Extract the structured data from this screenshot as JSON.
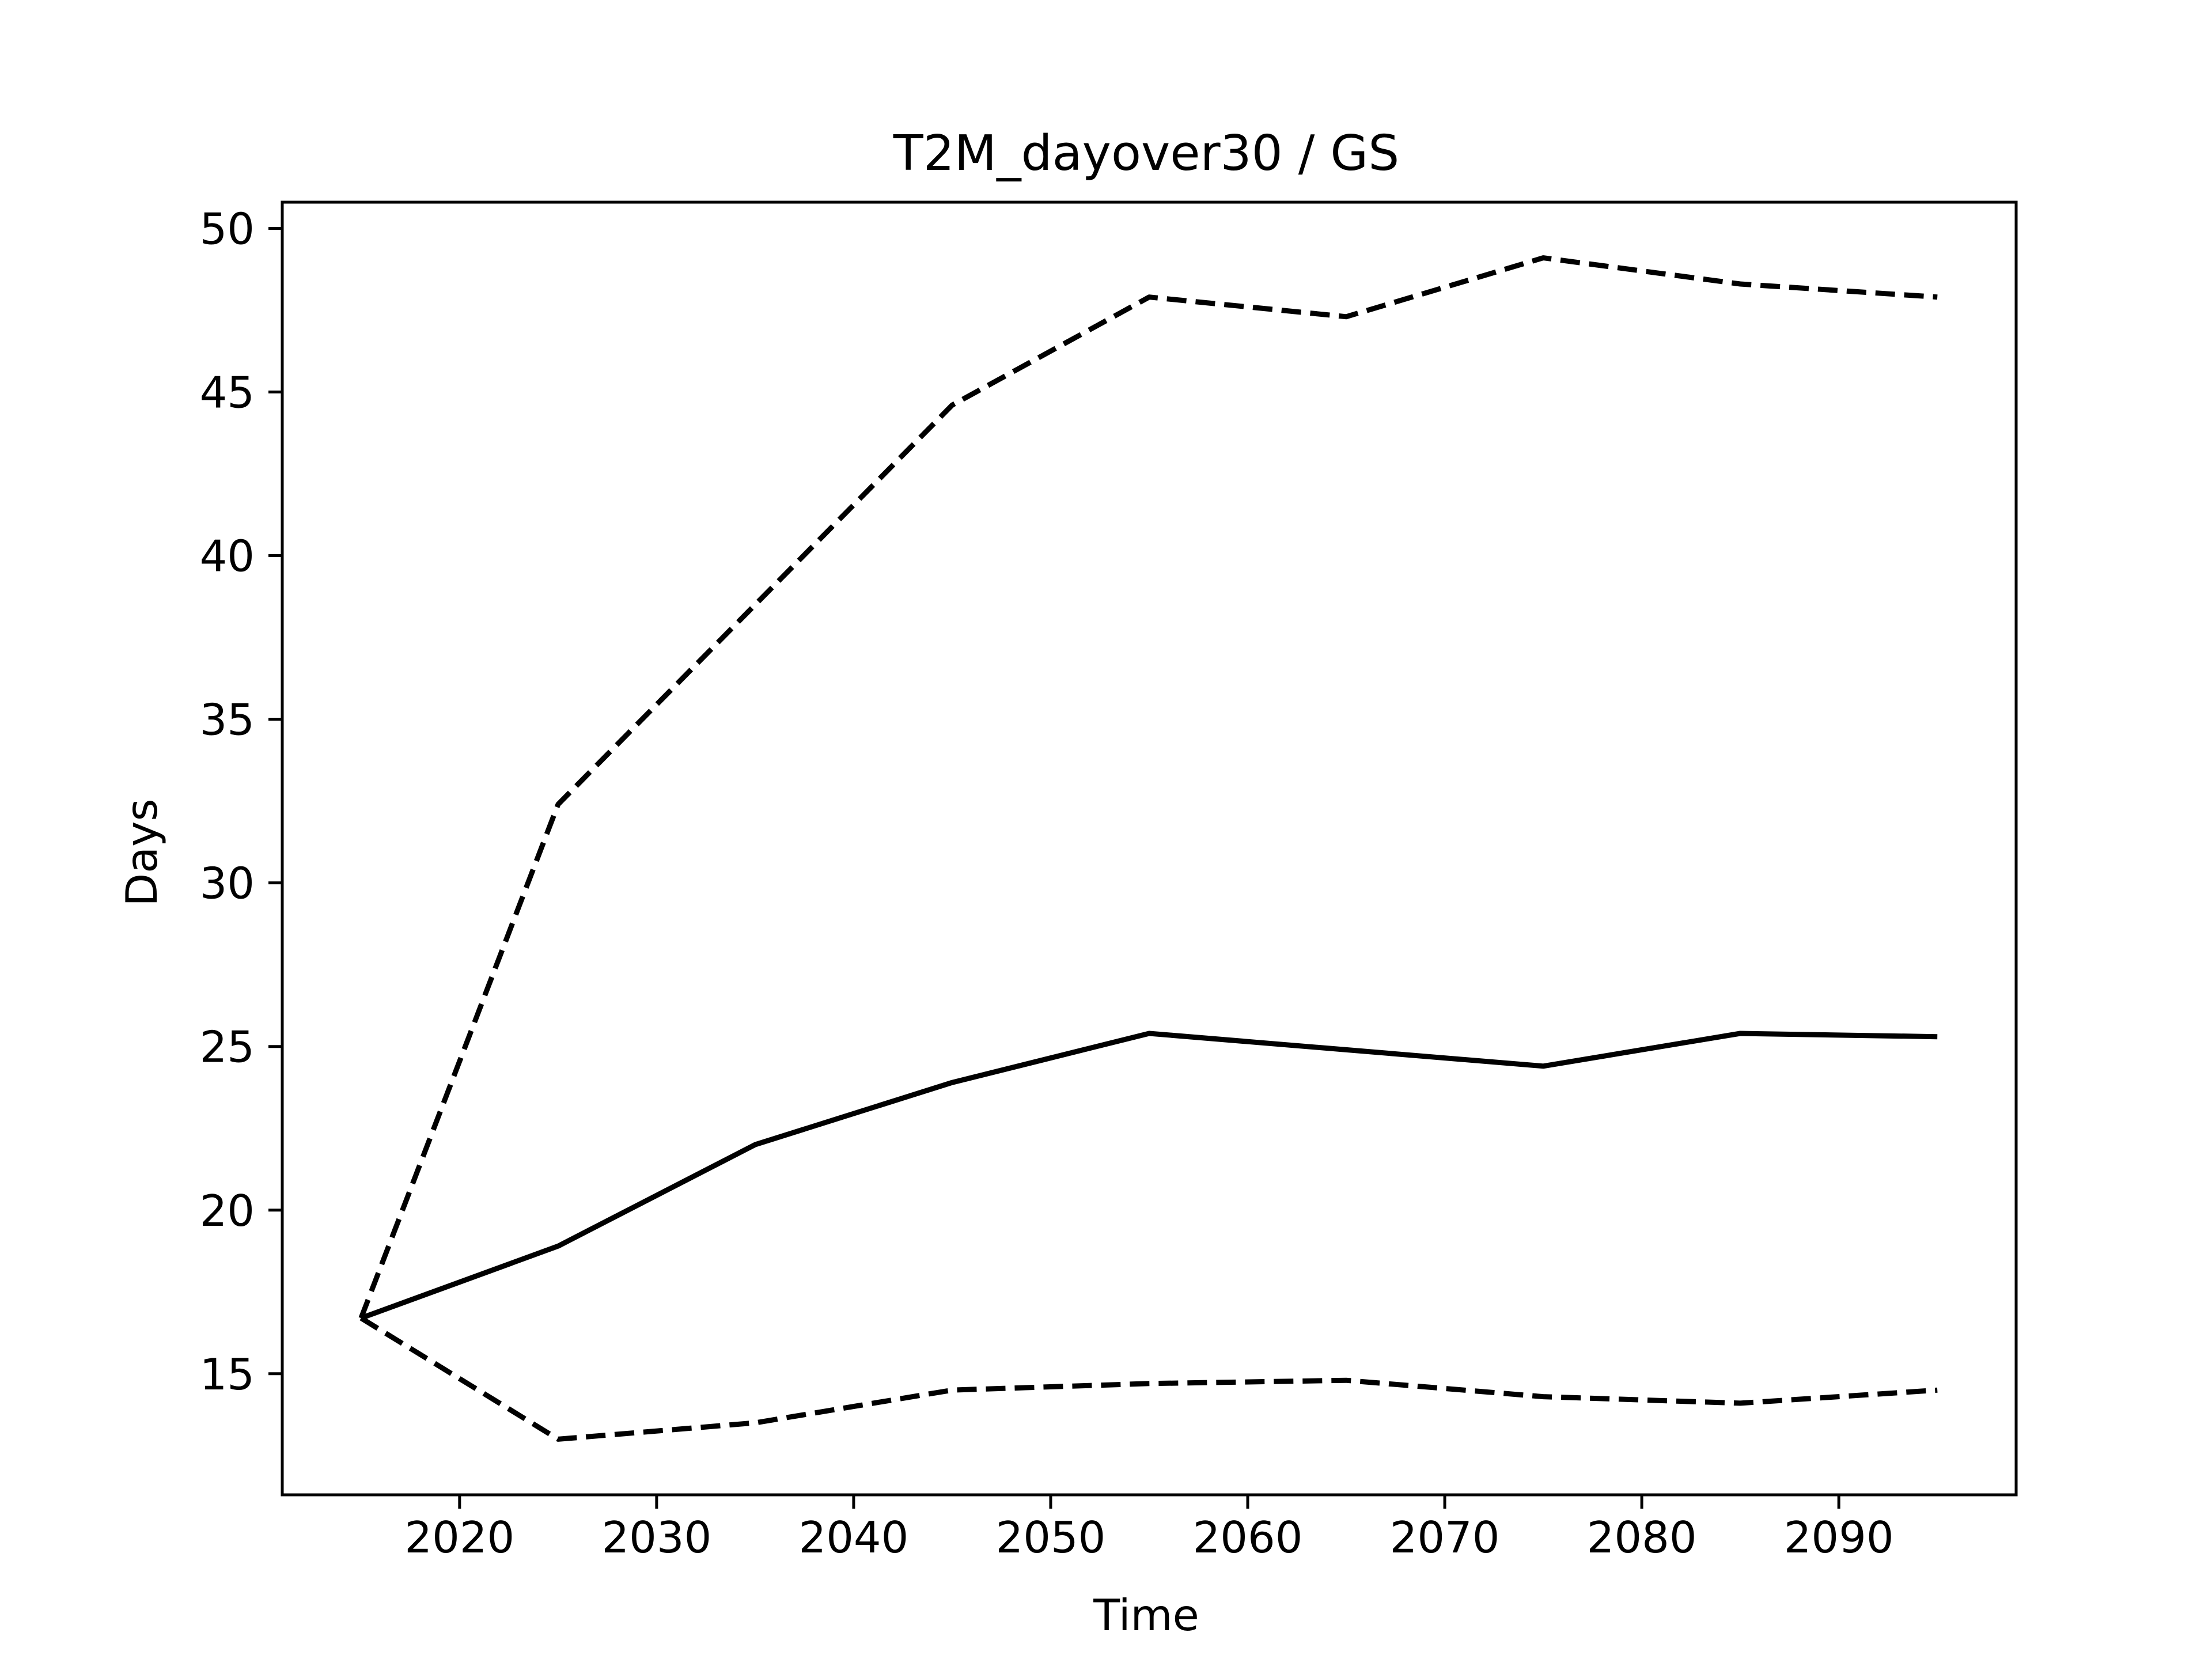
{
  "chart_data": {
    "type": "line",
    "title": "T2M_dayover30 / GS",
    "xlabel": "Time",
    "ylabel": "Days",
    "x": [
      2015,
      2025,
      2035,
      2045,
      2055,
      2065,
      2075,
      2085,
      2095
    ],
    "xticks": [
      2020,
      2030,
      2040,
      2050,
      2060,
      2070,
      2080,
      2090
    ],
    "yticks": [
      15,
      20,
      25,
      30,
      35,
      40,
      45,
      50
    ],
    "xlim": [
      2011,
      2099
    ],
    "ylim": [
      11.3,
      50.8
    ],
    "grid": false,
    "series": [
      {
        "style": "solid",
        "color": "#000000",
        "values": [
          16.7,
          18.9,
          22.0,
          23.9,
          25.4,
          24.9,
          24.4,
          25.4,
          25.3
        ]
      },
      {
        "style": "dashed",
        "color": "#000000",
        "values": [
          16.7,
          32.4,
          38.5,
          44.6,
          47.9,
          47.3,
          49.1,
          48.3,
          47.9
        ]
      },
      {
        "style": "dashed",
        "color": "#000000",
        "values": [
          16.7,
          13.0,
          13.5,
          14.5,
          14.7,
          14.8,
          14.3,
          14.1,
          14.5
        ]
      }
    ]
  }
}
